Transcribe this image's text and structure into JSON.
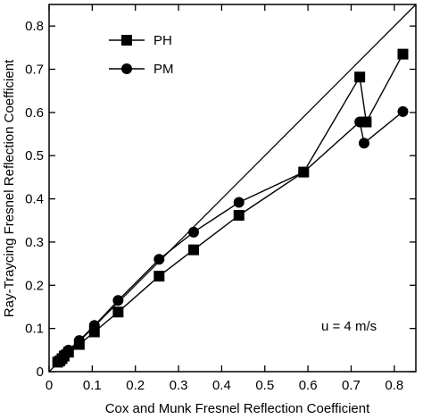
{
  "chart_data": {
    "type": "line",
    "title": "",
    "xlabel": "Cox and Munk Fresnel Reflection Coefficient",
    "ylabel": "Ray-Traycing Fresnel Reflection Coefficient",
    "xlim": [
      0,
      0.85
    ],
    "ylim": [
      0,
      0.85
    ],
    "xticks": [
      0,
      0.1,
      0.2,
      0.3,
      0.4,
      0.5,
      0.6,
      0.7,
      0.8
    ],
    "yticks": [
      0,
      0.1,
      0.2,
      0.3,
      0.4,
      0.5,
      0.6,
      0.7,
      0.8
    ],
    "xtick_labels": [
      "0",
      "0.1",
      "0.2",
      "0.3",
      "0.4",
      "0.5",
      "0.6",
      "0.7",
      "0.8"
    ],
    "ytick_labels": [
      "0",
      "0.1",
      "0.2",
      "0.3",
      "0.4",
      "0.5",
      "0.6",
      "0.7",
      "0.8"
    ],
    "reference_line": {
      "from": [
        0,
        0
      ],
      "to": [
        0.85,
        0.85
      ]
    },
    "grid": false,
    "legend_position": "top-left",
    "annotation": "u = 4 m/s",
    "series": [
      {
        "name": "PH",
        "marker": "square",
        "color": "#000000",
        "x": [
          0.02,
          0.025,
          0.03,
          0.035,
          0.045,
          0.07,
          0.105,
          0.16,
          0.255,
          0.335,
          0.44,
          0.59,
          0.72,
          0.735,
          0.82
        ],
        "y": [
          0.022,
          0.025,
          0.03,
          0.036,
          0.045,
          0.063,
          0.092,
          0.138,
          0.221,
          0.282,
          0.362,
          0.462,
          0.682,
          0.578,
          0.735
        ]
      },
      {
        "name": "PM",
        "marker": "circle",
        "color": "#000000",
        "x": [
          0.02,
          0.025,
          0.03,
          0.035,
          0.045,
          0.07,
          0.105,
          0.16,
          0.255,
          0.335,
          0.44,
          0.59,
          0.72,
          0.73,
          0.82
        ],
        "y": [
          0.024,
          0.028,
          0.033,
          0.04,
          0.05,
          0.072,
          0.107,
          0.165,
          0.26,
          0.323,
          0.392,
          0.462,
          0.578,
          0.529,
          0.602
        ]
      }
    ]
  }
}
